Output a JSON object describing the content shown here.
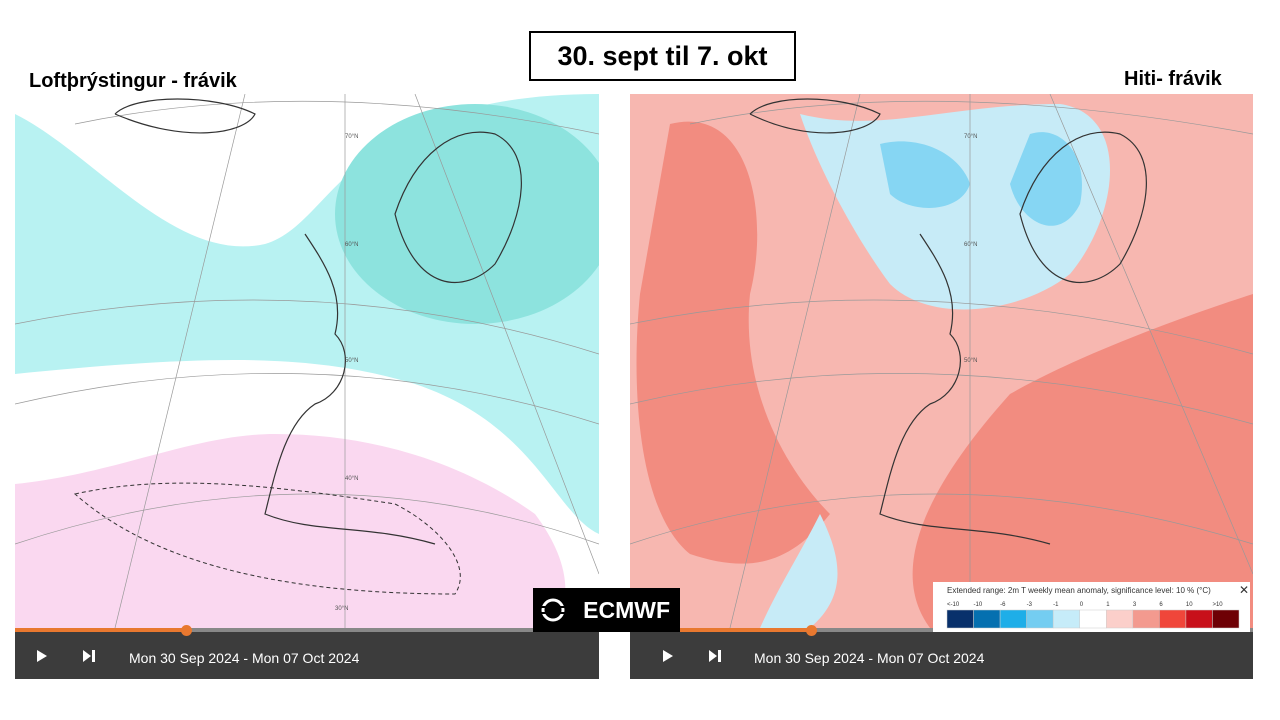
{
  "header": {
    "title": "30. sept til 7. okt"
  },
  "left_panel": {
    "label": "Loftþrýstingur - frávik",
    "lat_labels": [
      "70°N",
      "60°N",
      "50°N",
      "40°N",
      "30°N"
    ],
    "player": {
      "date_range": "Mon 30 Sep 2024 - Mon 07 Oct 2024"
    }
  },
  "right_panel": {
    "label": "Hiti- frávik",
    "lat_labels": [
      "70°N",
      "60°N",
      "50°N"
    ],
    "player": {
      "date_range": "Mon 30 Sep 2024 - Mon 07 Oct 2024"
    },
    "legend": {
      "title": "Extended range: 2m T weekly mean anomaly, significance level: 10 % (°C)",
      "labels": [
        "<-10",
        "-10",
        "-6",
        "-3",
        "-1",
        "0",
        "1",
        "3",
        "6",
        "10",
        ">10"
      ]
    }
  },
  "logo": {
    "text": "ECMWF"
  }
}
